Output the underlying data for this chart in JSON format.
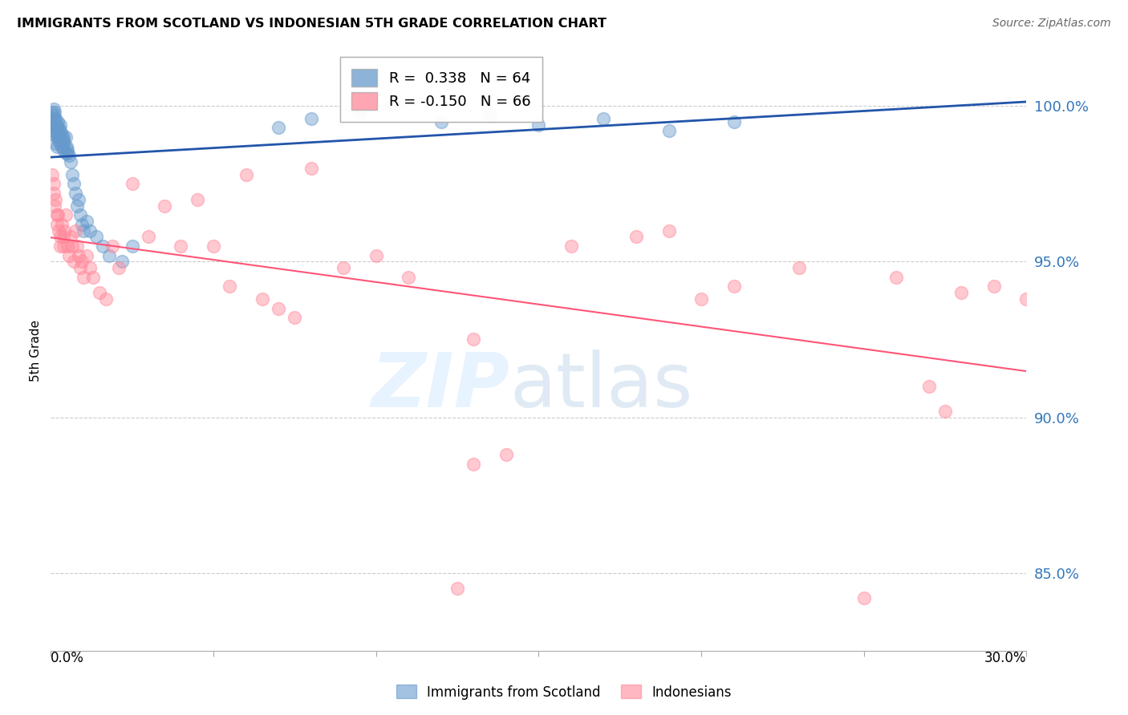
{
  "title": "IMMIGRANTS FROM SCOTLAND VS INDONESIAN 5TH GRADE CORRELATION CHART",
  "source": "Source: ZipAtlas.com",
  "ylabel": "5th Grade",
  "legend_blue_label": "Immigrants from Scotland",
  "legend_pink_label": "Indonesians",
  "R_blue": 0.338,
  "N_blue": 64,
  "R_pink": -0.15,
  "N_pink": 66,
  "xlim": [
    0.0,
    30.0
  ],
  "ylim": [
    82.5,
    101.8
  ],
  "yticks": [
    85.0,
    90.0,
    95.0,
    100.0
  ],
  "blue_color": "#6699CC",
  "pink_color": "#FF8899",
  "blue_line_color": "#2255AA",
  "pink_line_color": "#FF5577",
  "blue_dots_x": [
    0.05,
    0.05,
    0.05,
    0.08,
    0.08,
    0.08,
    0.1,
    0.1,
    0.12,
    0.12,
    0.15,
    0.15,
    0.15,
    0.18,
    0.18,
    0.2,
    0.2,
    0.22,
    0.22,
    0.25,
    0.25,
    0.28,
    0.28,
    0.3,
    0.3,
    0.32,
    0.35,
    0.35,
    0.38,
    0.4,
    0.4,
    0.42,
    0.45,
    0.45,
    0.48,
    0.5,
    0.52,
    0.55,
    0.6,
    0.65,
    0.7,
    0.75,
    0.8,
    0.85,
    0.9,
    0.95,
    1.0,
    1.1,
    1.2,
    1.4,
    1.6,
    1.8,
    2.2,
    2.5,
    7.0,
    8.0,
    9.5,
    10.5,
    12.0,
    13.5,
    15.0,
    17.0,
    19.0,
    21.0
  ],
  "blue_dots_y": [
    99.2,
    99.5,
    99.8,
    99.3,
    99.6,
    99.9,
    99.1,
    99.7,
    99.4,
    99.8,
    98.8,
    99.2,
    99.6,
    99.0,
    99.4,
    98.7,
    99.3,
    99.1,
    99.5,
    98.9,
    99.3,
    99.0,
    99.4,
    98.8,
    99.2,
    99.0,
    98.7,
    99.1,
    98.9,
    98.6,
    99.0,
    98.8,
    98.5,
    99.0,
    98.7,
    98.5,
    98.6,
    98.4,
    98.2,
    97.8,
    97.5,
    97.2,
    96.8,
    97.0,
    96.5,
    96.2,
    96.0,
    96.3,
    96.0,
    95.8,
    95.5,
    95.2,
    95.0,
    95.5,
    99.3,
    99.6,
    99.8,
    100.0,
    99.5,
    99.7,
    99.4,
    99.6,
    99.2,
    99.5
  ],
  "pink_dots_x": [
    0.05,
    0.08,
    0.1,
    0.12,
    0.15,
    0.18,
    0.2,
    0.22,
    0.25,
    0.28,
    0.3,
    0.35,
    0.38,
    0.4,
    0.42,
    0.45,
    0.5,
    0.55,
    0.6,
    0.65,
    0.7,
    0.75,
    0.8,
    0.85,
    0.9,
    0.95,
    1.0,
    1.1,
    1.2,
    1.3,
    1.5,
    1.7,
    1.9,
    2.1,
    2.5,
    3.0,
    3.5,
    4.0,
    4.5,
    5.0,
    5.5,
    6.0,
    6.5,
    7.0,
    8.0,
    9.0,
    10.0,
    11.0,
    12.5,
    13.0,
    14.0,
    16.0,
    18.0,
    19.0,
    20.0,
    21.0,
    23.0,
    25.0,
    26.0,
    27.5,
    28.0,
    29.0,
    30.0,
    13.0,
    7.5,
    27.0
  ],
  "pink_dots_y": [
    97.8,
    97.5,
    97.2,
    96.8,
    97.0,
    96.5,
    96.2,
    96.5,
    96.0,
    95.8,
    95.5,
    96.2,
    95.8,
    95.5,
    96.0,
    96.5,
    95.5,
    95.2,
    95.8,
    95.5,
    95.0,
    96.0,
    95.5,
    95.2,
    94.8,
    95.0,
    94.5,
    95.2,
    94.8,
    94.5,
    94.0,
    93.8,
    95.5,
    94.8,
    97.5,
    95.8,
    96.8,
    95.5,
    97.0,
    95.5,
    94.2,
    97.8,
    93.8,
    93.5,
    98.0,
    94.8,
    95.2,
    94.5,
    84.5,
    88.5,
    88.8,
    95.5,
    95.8,
    96.0,
    93.8,
    94.2,
    94.8,
    84.2,
    94.5,
    90.2,
    94.0,
    94.2,
    93.8,
    92.5,
    93.2,
    91.0
  ]
}
